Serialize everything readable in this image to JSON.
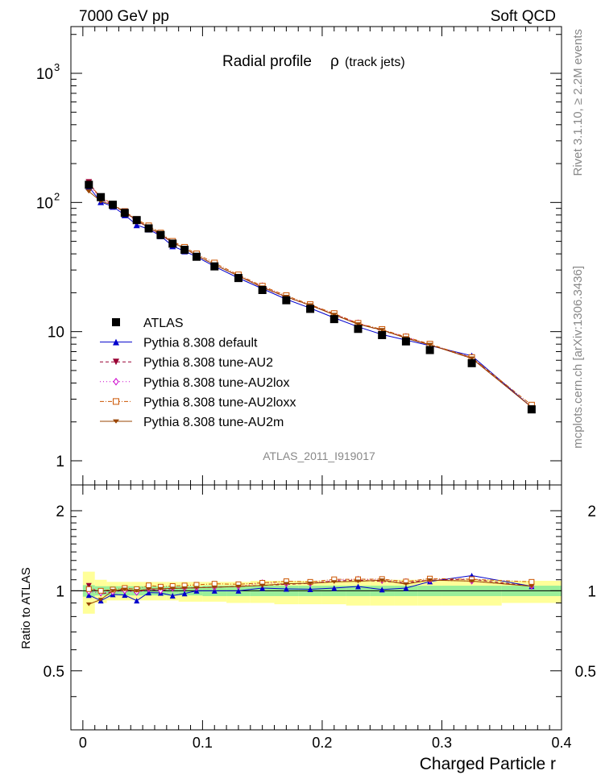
{
  "header": {
    "left": "7000 GeV pp",
    "right": "Soft QCD"
  },
  "side_labels": {
    "rivet": "Rivet 3.1.10, ≥ 2.2M events",
    "mcplots": "mcplots.cern.ch [arXiv:1306.3436]"
  },
  "chart_data": {
    "type": "scatter",
    "title": "Radial profile ρ (track jets)",
    "title_main": "Radial profile",
    "title_symbol": "ρ",
    "title_sub": "(track jets)",
    "watermark": "ATLAS_2011_I919017",
    "xlabel": "Charged Particle r",
    "ratio_ylabel": "Ratio to ATLAS",
    "xlim": [
      -0.01,
      0.4
    ],
    "main_ylim": [
      0.65,
      2300
    ],
    "main_yscale": "log",
    "ratio_ylim": [
      0.3,
      2.5
    ],
    "ratio_yscale": "log",
    "x_ticks": [
      {
        "v": 0,
        "label": "0"
      },
      {
        "v": 0.1,
        "label": "0.1"
      },
      {
        "v": 0.2,
        "label": "0.2"
      },
      {
        "v": 0.3,
        "label": "0.3"
      },
      {
        "v": 0.4,
        "label": "0.4"
      }
    ],
    "main_y_ticks": [
      {
        "v": 1,
        "label": "1"
      },
      {
        "v": 10,
        "label": "10"
      },
      {
        "v": 100,
        "label": "10",
        "exp": "2"
      },
      {
        "v": 1000,
        "label": "10",
        "exp": "3"
      }
    ],
    "ratio_y_ticks": [
      {
        "v": 0.5,
        "label": "0.5"
      },
      {
        "v": 1,
        "label": "1"
      },
      {
        "v": 2,
        "label": "2"
      }
    ],
    "x": [
      0.005,
      0.015,
      0.025,
      0.035,
      0.045,
      0.055,
      0.065,
      0.075,
      0.085,
      0.095,
      0.11,
      0.13,
      0.15,
      0.17,
      0.19,
      0.21,
      0.23,
      0.25,
      0.27,
      0.29,
      0.325,
      0.375
    ],
    "band_edges": [
      0,
      0.01,
      0.02,
      0.03,
      0.04,
      0.05,
      0.06,
      0.07,
      0.08,
      0.09,
      0.1,
      0.12,
      0.14,
      0.16,
      0.18,
      0.2,
      0.22,
      0.24,
      0.26,
      0.28,
      0.3,
      0.35,
      0.4
    ],
    "band_green_lo": [
      0.95,
      0.96,
      0.96,
      0.96,
      0.96,
      0.96,
      0.96,
      0.96,
      0.96,
      0.96,
      0.955,
      0.955,
      0.955,
      0.955,
      0.955,
      0.955,
      0.955,
      0.955,
      0.955,
      0.955,
      0.955,
      0.955
    ],
    "band_green_hi": [
      1.05,
      1.04,
      1.04,
      1.04,
      1.04,
      1.04,
      1.04,
      1.04,
      1.04,
      1.04,
      1.045,
      1.045,
      1.045,
      1.045,
      1.045,
      1.045,
      1.045,
      1.045,
      1.045,
      1.045,
      1.045,
      1.045
    ],
    "band_yellow_lo": [
      0.82,
      0.9,
      0.92,
      0.92,
      0.92,
      0.92,
      0.92,
      0.92,
      0.91,
      0.91,
      0.91,
      0.9,
      0.9,
      0.89,
      0.89,
      0.89,
      0.88,
      0.88,
      0.88,
      0.88,
      0.88,
      0.9
    ],
    "band_yellow_hi": [
      1.18,
      1.1,
      1.08,
      1.08,
      1.08,
      1.08,
      1.08,
      1.08,
      1.08,
      1.08,
      1.08,
      1.08,
      1.09,
      1.09,
      1.09,
      1.09,
      1.1,
      1.1,
      1.1,
      1.1,
      1.1,
      1.09
    ],
    "series": [
      {
        "name": "ATLAS",
        "marker": "square-filled",
        "color": "#000000",
        "dash": "",
        "values": [
          137,
          110,
          96,
          83,
          73,
          63,
          56,
          48,
          43,
          38,
          32,
          26,
          21,
          17.5,
          15,
          12.5,
          10.5,
          9.4,
          8.4,
          7.2,
          5.7,
          2.5
        ]
      },
      {
        "name": "Pythia 8.308 default",
        "marker": "triangle-up-filled",
        "color": "#0000cc",
        "dash": "",
        "values": [
          132,
          101,
          93,
          80,
          67,
          62,
          55,
          46,
          42,
          38,
          32,
          26,
          21.5,
          17.8,
          15.2,
          12.8,
          10.9,
          9.5,
          8.6,
          7.8,
          6.5,
          2.6
        ]
      },
      {
        "name": "Pythia 8.308 tune-AU2",
        "marker": "triangle-down-filled",
        "color": "#990033",
        "dash": "4,3",
        "values": [
          143,
          107,
          95,
          85,
          72,
          64,
          56,
          49,
          44,
          39,
          33,
          27,
          22,
          18.5,
          16,
          13.6,
          11.5,
          10.2,
          9,
          7.9,
          6.3,
          2.6
        ]
      },
      {
        "name": "Pythia 8.308 tune-AU2lox",
        "marker": "diamond-open",
        "color": "#cc00cc",
        "dash": "1,3",
        "values": [
          136,
          108,
          95,
          83,
          72,
          64,
          56,
          49,
          44,
          39,
          33,
          27,
          22.5,
          18.6,
          16,
          13.7,
          11.6,
          10.3,
          9.1,
          7.9,
          6.2,
          2.6
        ]
      },
      {
        "name": "Pythia 8.308 tune-AU2loxx",
        "marker": "square-open",
        "color": "#cc5500",
        "dash": "5,2,1,2",
        "values": [
          139,
          110,
          97,
          85,
          74,
          66,
          58,
          50,
          45,
          40,
          34,
          27.5,
          22.5,
          19,
          16.2,
          13.8,
          11.6,
          10.4,
          9.1,
          8,
          6.3,
          2.7
        ]
      },
      {
        "name": "Pythia 8.308 tune-AU2m",
        "marker": "tri-down",
        "color": "#994400",
        "dash": "",
        "values": [
          122,
          102,
          96,
          84,
          73,
          64,
          57,
          49,
          44,
          39,
          33,
          27,
          22,
          18.6,
          16,
          13.5,
          11.4,
          10.3,
          8.9,
          7.9,
          6.2,
          2.6
        ]
      }
    ]
  }
}
